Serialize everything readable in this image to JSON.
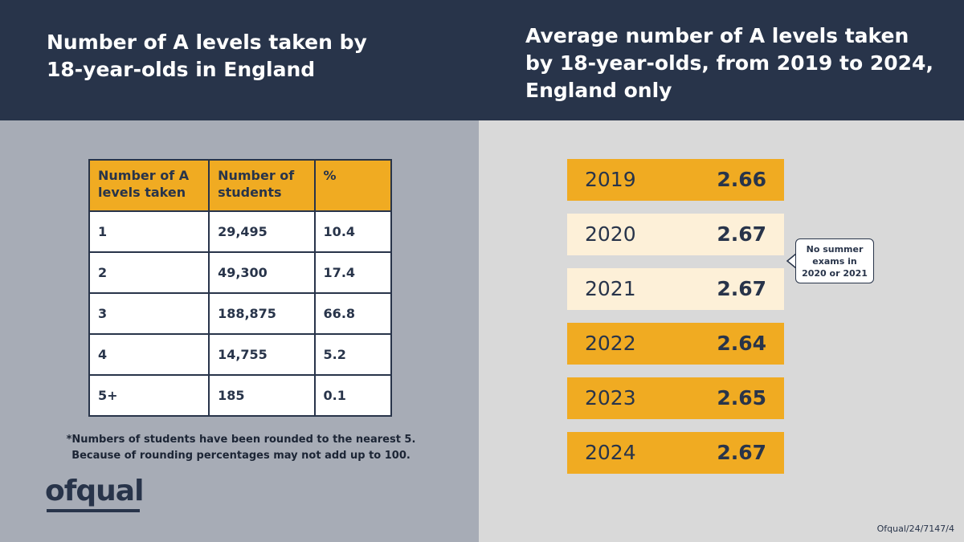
{
  "header": {
    "left_title": "Number of A levels taken by 18-year-olds in England",
    "right_title": "Average number of A levels taken by 18-year-olds, from 2019 to 2024, England only"
  },
  "table": {
    "headers": [
      "Number of A levels taken",
      "Number of students",
      "%"
    ],
    "rows": [
      [
        "1",
        "29,495",
        "10.4"
      ],
      [
        "2",
        "49,300",
        "17.4"
      ],
      [
        "3",
        "188,875",
        "66.8"
      ],
      [
        "4",
        "14,755",
        "5.2"
      ],
      [
        "5+",
        "185",
        "0.1"
      ]
    ]
  },
  "footnote": {
    "line1": "*Numbers of students have been rounded to the nearest 5.",
    "line2": "Because of rounding percentages may not add up to 100."
  },
  "logo": "ofqual",
  "reference": "Ofqual/24/7147/4",
  "callout": {
    "line1": "No summer",
    "line2": "exams in",
    "line3": "2020 or 2021"
  },
  "colors": {
    "navy": "#28344a",
    "orange": "#f0ab22",
    "cream": "#fdf0d8",
    "left_bg": "#a7acb6",
    "right_bg": "#d9d9d9"
  },
  "chart_data": [
    {
      "type": "table",
      "title": "Number of A levels taken by 18-year-olds in England",
      "columns": [
        "Number of A levels taken",
        "Number of students",
        "%"
      ],
      "rows": [
        [
          "1",
          29495,
          10.4
        ],
        [
          "2",
          49300,
          17.4
        ],
        [
          "3",
          188875,
          66.8
        ],
        [
          "4",
          14755,
          5.2
        ],
        [
          "5+",
          185,
          0.1
        ]
      ]
    },
    {
      "type": "table",
      "title": "Average number of A levels taken by 18-year-olds, from 2019 to 2024, England only",
      "categories": [
        "2019",
        "2020",
        "2021",
        "2022",
        "2023",
        "2024"
      ],
      "values": [
        2.66,
        2.67,
        2.67,
        2.64,
        2.65,
        2.67
      ],
      "labels": [
        "2.66",
        "2.67",
        "2.67",
        "2.64",
        "2.65",
        "2.67"
      ],
      "highlight": [
        false,
        true,
        true,
        false,
        false,
        false
      ]
    }
  ]
}
